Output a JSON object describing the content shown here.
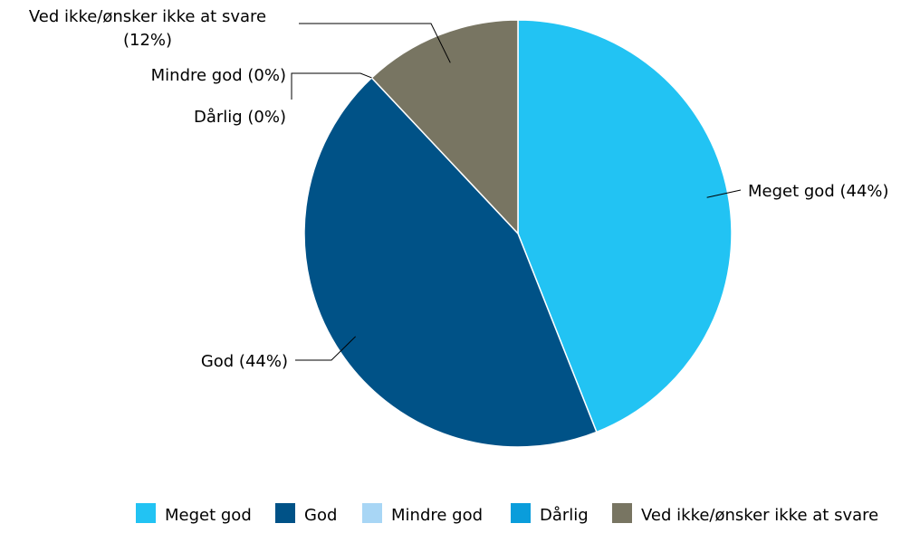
{
  "chart_data": {
    "type": "pie",
    "slices": [
      {
        "label": "Meget god",
        "value": 44,
        "color": "#22C3F3",
        "callout": "Meget god (44%)"
      },
      {
        "label": "God",
        "value": 44,
        "color": "#005287",
        "callout": "God (44%)"
      },
      {
        "label": "Mindre god",
        "value": 0,
        "color": "#A8D6F5",
        "callout": "Mindre god (0%)"
      },
      {
        "label": "Dårlig",
        "value": 0,
        "color": "#0A9DDB",
        "callout": "Dårlig (0%)"
      },
      {
        "label": "Ved ikke/ønsker ikke at svare",
        "value": 12,
        "color": "#787562",
        "callout": [
          "Ved ikke/ønsker ikke at svare",
          "(12%)"
        ]
      }
    ],
    "legend_position": "bottom-right",
    "legend": [
      "Meget god",
      "God",
      "Mindre god",
      "Dårlig",
      "Ved ikke/ønsker ikke at svare"
    ]
  }
}
